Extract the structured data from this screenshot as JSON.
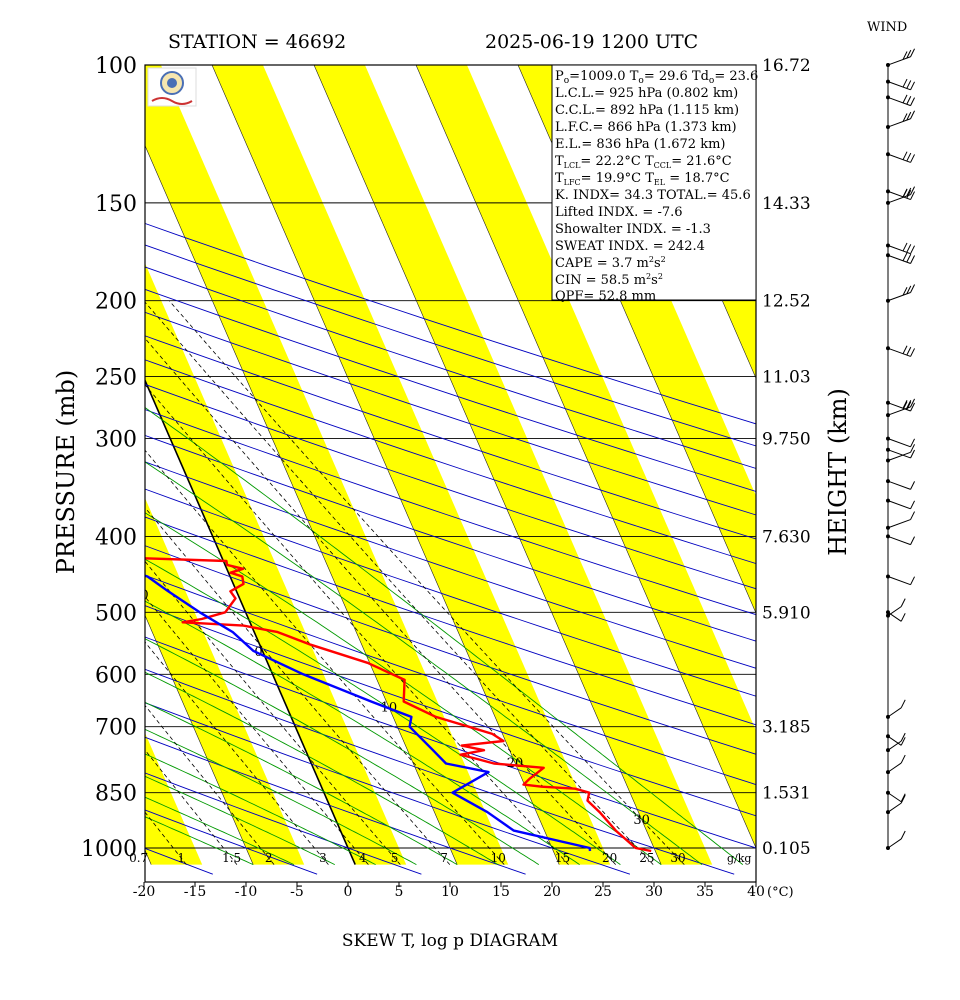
{
  "header": {
    "station": "STATION = 46692",
    "datetime": "2025-06-19 1200 UTC",
    "wind_title": "WIND"
  },
  "footer": {
    "title": "SKEW T, log p DIAGRAM",
    "temp_unit": "(°C)",
    "mixing_unit": "g/kg"
  },
  "axes": {
    "ylabel_left": "PRESSURE (mb)",
    "ylabel_right": "HEIGHT (km)"
  },
  "colors": {
    "temperature": "#ff0000",
    "dewpoint": "#0000ff",
    "band": "#ffff00",
    "isotherm": "#000000",
    "dry_adiabat": "#0000c0",
    "moist_adiabat": "#009900",
    "mixing_ratio": "#000000"
  },
  "indices": {
    "p0": "1009.0",
    "t0": "29.6",
    "td0": "23.6",
    "lcl": "925 hPa (0.802 km)",
    "ccl": "892 hPa (1.115 km)",
    "lfc": "866 hPa (1.373 km)",
    "el": "836 hPa (1.672 km)",
    "tlcl": "22.2°C",
    "tccl": "21.6°C",
    "tlfc": "19.9°C",
    "tel": "18.7°C",
    "k_index": "34.3",
    "total": "45.6",
    "lifted": "-7.6",
    "showalter": "-1.3",
    "sweat": "242.4",
    "cape": "3.7",
    "cin": "58.5",
    "qpf": "52.8 mm"
  },
  "chart_data": {
    "type": "skew-t",
    "pressure_levels": [
      100,
      150,
      200,
      250,
      300,
      400,
      500,
      600,
      700,
      850,
      1000
    ],
    "height_labels": [
      {
        "p": 100,
        "label": "16.72"
      },
      {
        "p": 150,
        "label": "14.33"
      },
      {
        "p": 200,
        "label": "12.52"
      },
      {
        "p": 250,
        "label": "11.03"
      },
      {
        "p": 300,
        "label": "9.750"
      },
      {
        "p": 400,
        "label": "7.630"
      },
      {
        "p": 500,
        "label": "5.910"
      },
      {
        "p": 700,
        "label": "3.185"
      },
      {
        "p": 850,
        "label": "1.531"
      },
      {
        "p": 1000,
        "label": "0.105"
      }
    ],
    "x_ticks": [
      -20,
      -15,
      -10,
      -5,
      0,
      5,
      10,
      15,
      20,
      25,
      30,
      35,
      40
    ],
    "isotherm_labels": [
      -90,
      -80,
      -70,
      -60,
      -50,
      -40,
      -30,
      -20,
      -10,
      0,
      10,
      20,
      30
    ],
    "mixing_ratio_labels": [
      "0.7",
      "1",
      "1.5",
      "2",
      "3",
      "4",
      "5",
      "7",
      "10",
      "15",
      "20",
      "25",
      "30"
    ],
    "mixing_ratio_values": [
      0.7,
      1,
      1.5,
      2,
      3,
      4,
      5,
      7,
      10,
      15,
      20,
      25,
      30
    ],
    "temperature": [
      [
        1009,
        29.6
      ],
      [
        1000,
        28.2
      ],
      [
        950,
        27.0
      ],
      [
        900,
        26.2
      ],
      [
        870,
        25.5
      ],
      [
        850,
        26.0
      ],
      [
        840,
        24.8
      ],
      [
        835,
        21.6
      ],
      [
        830,
        19.9
      ],
      [
        815,
        20.8
      ],
      [
        790,
        22.6
      ],
      [
        780,
        17.9
      ],
      [
        770,
        16.5
      ],
      [
        760,
        15.0
      ],
      [
        750,
        17.5
      ],
      [
        740,
        15.5
      ],
      [
        730,
        19.8
      ],
      [
        715,
        19.0
      ],
      [
        700,
        17.0
      ],
      [
        680,
        14.2
      ],
      [
        650,
        11.7
      ],
      [
        610,
        12.7
      ],
      [
        580,
        9.8
      ],
      [
        550,
        5.0
      ],
      [
        530,
        2.3
      ],
      [
        520,
        -0.8
      ],
      [
        515,
        -6.6
      ],
      [
        510,
        -4.6
      ],
      [
        500,
        -2.0
      ],
      [
        480,
        -0.4
      ],
      [
        470,
        -0.6
      ],
      [
        460,
        1.0
      ],
      [
        450,
        1.2
      ],
      [
        445,
        0.2
      ],
      [
        440,
        1.6
      ],
      [
        435,
        0.2
      ],
      [
        430,
        0.3
      ],
      [
        425,
        -11.5
      ],
      [
        420,
        -15.2
      ],
      [
        415,
        -18.3
      ],
      [
        410,
        -16.6
      ],
      [
        405,
        -31.6
      ],
      [
        400,
        -34.6
      ],
      [
        395,
        -34.9
      ],
      [
        390,
        -31.0
      ],
      [
        385,
        -27.3
      ],
      [
        380,
        -24.0
      ],
      [
        375,
        -23.7
      ],
      [
        370,
        -17.8
      ],
      [
        365,
        -13.6
      ],
      [
        360,
        -13.5
      ],
      [
        355,
        -18.4
      ],
      [
        350,
        -12.3
      ],
      [
        340,
        -10.0
      ],
      [
        330,
        -12.3
      ],
      [
        320,
        -20.0
      ],
      [
        310,
        -25.7
      ],
      [
        305,
        -33.2
      ],
      [
        300,
        -33.8
      ],
      [
        290,
        -34.4
      ],
      [
        280,
        -37.9
      ],
      [
        270,
        -43.1
      ],
      [
        260,
        -48.7
      ],
      [
        250,
        -53.2
      ],
      [
        240,
        -52.3
      ],
      [
        230,
        -47.9
      ],
      [
        220,
        -55.0
      ],
      [
        210,
        -58.5
      ],
      [
        200,
        -60.2
      ],
      [
        190,
        -63.1
      ],
      [
        180,
        -65.7
      ],
      [
        170,
        -68.1
      ],
      [
        160,
        -69.5
      ],
      [
        150,
        -73.5
      ],
      [
        140,
        -84.5
      ],
      [
        130,
        -84.9
      ],
      [
        120,
        -83.4
      ],
      [
        110,
        -79.4
      ],
      [
        100,
        -77.0
      ]
    ],
    "dewpoint": [
      [
        1009,
        23.6
      ],
      [
        1000,
        23.7
      ],
      [
        950,
        17.0
      ],
      [
        900,
        15.2
      ],
      [
        850,
        12.6
      ],
      [
        800,
        17.0
      ],
      [
        780,
        13.2
      ],
      [
        750,
        12.5
      ],
      [
        700,
        11.2
      ],
      [
        680,
        11.8
      ],
      [
        650,
        8.5
      ],
      [
        600,
        3.0
      ],
      [
        560,
        -0.9
      ],
      [
        530,
        -2.1
      ],
      [
        500,
        -4.5
      ],
      [
        470,
        -6.7
      ],
      [
        450,
        -8.1
      ],
      [
        440,
        -10.1
      ],
      [
        430,
        -12.1
      ],
      [
        420,
        -13.6
      ],
      [
        400,
        -18.9
      ],
      [
        390,
        -20.8
      ],
      [
        380,
        -24.0
      ],
      [
        370,
        -25.2
      ],
      [
        360,
        -28.8
      ],
      [
        350,
        -30.3
      ],
      [
        340,
        -32.0
      ],
      [
        320,
        -34.7
      ],
      [
        300,
        -36.8
      ],
      [
        290,
        -38.8
      ],
      [
        280,
        -41.3
      ],
      [
        270,
        -44.0
      ],
      [
        260,
        -46.9
      ],
      [
        250,
        -50.0
      ],
      [
        240,
        -51.7
      ],
      [
        230,
        -54.4
      ],
      [
        220,
        -57.2
      ],
      [
        210,
        -60.5
      ],
      [
        200,
        -63.6
      ],
      [
        190,
        -66.0
      ],
      [
        180,
        -69.0
      ],
      [
        170,
        -72.0
      ],
      [
        160,
        -75.1
      ],
      [
        150,
        -79.1
      ],
      [
        140,
        -84.4
      ],
      [
        130,
        -89.6
      ],
      [
        120,
        -94.6
      ],
      [
        110,
        -98.9
      ],
      [
        100,
        -101.3
      ]
    ],
    "wind_levels": [
      100,
      105,
      110,
      120,
      130,
      145,
      150,
      170,
      175,
      200,
      230,
      270,
      280,
      300,
      310,
      320,
      340,
      360,
      390,
      400,
      450,
      500,
      505,
      680,
      720,
      750,
      800,
      850,
      900,
      1000
    ]
  }
}
